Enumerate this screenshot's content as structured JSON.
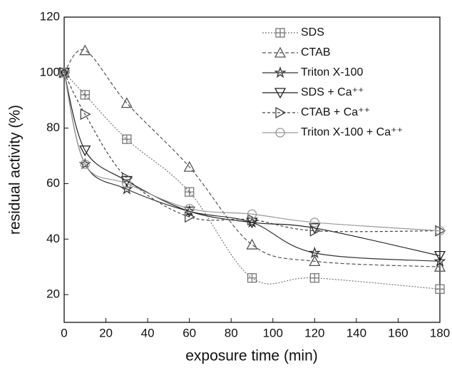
{
  "chart_data": {
    "type": "line",
    "x_label": "exposure time (min)",
    "y_label": "residual activity (%)",
    "x": [
      0,
      10,
      30,
      60,
      90,
      120,
      180
    ],
    "xlim": [
      0,
      180
    ],
    "xticks": [
      0,
      20,
      40,
      60,
      80,
      100,
      120,
      140,
      160,
      180
    ],
    "ylim": [
      10,
      120
    ],
    "yticks": [
      20,
      40,
      60,
      80,
      100,
      120
    ],
    "legend": "upper right",
    "series": [
      {
        "name": "SDS",
        "color": "#777777",
        "marker": "square",
        "dash": "2,2",
        "values": [
          100,
          92,
          76,
          57,
          26,
          26,
          22
        ]
      },
      {
        "name": "CTAB",
        "color": "#555555",
        "marker": "triangle-up",
        "dash": "5,3",
        "values": [
          100,
          108,
          89,
          66,
          38,
          32,
          30
        ]
      },
      {
        "name": "Triton X-100",
        "color": "#333333",
        "marker": "star",
        "dash": "none",
        "values": [
          100,
          67,
          58,
          50,
          46,
          35,
          32
        ]
      },
      {
        "name": "SDS + Ca⁺⁺",
        "color": "#222222",
        "marker": "triangle-down",
        "dash": "none",
        "values": [
          100,
          72,
          61,
          50,
          46,
          44,
          34
        ]
      },
      {
        "name": "CTAB + Ca⁺⁺",
        "color": "#444444",
        "marker": "triangle-right",
        "dash": "4,3",
        "values": [
          100,
          85,
          62,
          48,
          47,
          43,
          43
        ]
      },
      {
        "name": "Triton X-100 + Ca⁺⁺",
        "color": "#999999",
        "marker": "circle",
        "dash": "none",
        "values": [
          100,
          67,
          60,
          51,
          49,
          46,
          43
        ]
      }
    ]
  }
}
